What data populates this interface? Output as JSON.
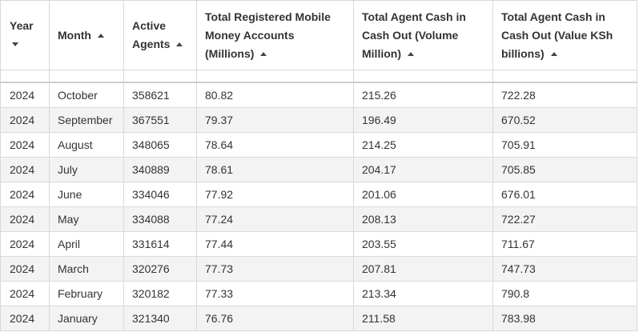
{
  "table": {
    "headers": [
      {
        "line1": "Year",
        "line2": "",
        "line3": "",
        "sort": "down"
      },
      {
        "line1": "Month",
        "line2": "",
        "line3": "",
        "sort": "up"
      },
      {
        "line1": "Active",
        "line2": "Agents",
        "line3": "",
        "sort": "up"
      },
      {
        "line1": "Total Registered Mobile",
        "line2": "Money Accounts",
        "line3": "(Millions)",
        "sort": "up"
      },
      {
        "line1": "Total Agent Cash in",
        "line2": "Cash Out (Volume",
        "line3": "Million)",
        "sort": "up"
      },
      {
        "line1": "Total Agent Cash in",
        "line2": "Cash Out (Value KSh",
        "line3": "billions)",
        "sort": "up"
      }
    ],
    "rows": [
      [
        "2024",
        "October",
        "358621",
        "80.82",
        "215.26",
        "722.28"
      ],
      [
        "2024",
        "September",
        "367551",
        "79.37",
        "196.49",
        "670.52"
      ],
      [
        "2024",
        "August",
        "348065",
        "78.64",
        "214.25",
        "705.91"
      ],
      [
        "2024",
        "July",
        "340889",
        "78.61",
        "204.17",
        "705.85"
      ],
      [
        "2024",
        "June",
        "334046",
        "77.92",
        "201.06",
        "676.01"
      ],
      [
        "2024",
        "May",
        "334088",
        "77.24",
        "208.13",
        "722.27"
      ],
      [
        "2024",
        "April",
        "331614",
        "77.44",
        "203.55",
        "711.67"
      ],
      [
        "2024",
        "March",
        "320276",
        "77.73",
        "207.81",
        "747.73"
      ],
      [
        "2024",
        "February",
        "320182",
        "77.33",
        "213.34",
        "790.8"
      ],
      [
        "2024",
        "January",
        "321340",
        "76.76",
        "211.58",
        "783.98"
      ]
    ]
  }
}
